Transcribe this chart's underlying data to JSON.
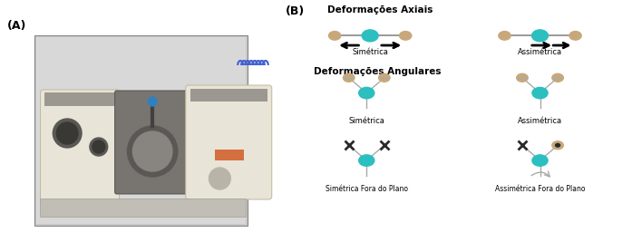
{
  "title_axial": "Deformações Axiais",
  "title_angular": "Deformações Angulares",
  "label_B": "(B)",
  "label_A": "(A)",
  "teal_color": "#2bbfbf",
  "tan_color": "#c8a87a",
  "gray_color": "#aaaaaa",
  "dark_color": "#2a2a2a",
  "bg_color": "#ffffff",
  "label_simetrica1": "Simétrica",
  "label_assimetrica1": "Assimétrica",
  "label_simetrica2": "Simétrica",
  "label_assimetrica2": "Assimétrica",
  "label_simetrica_fora": "Simétrica Fora do Plano",
  "label_assimetrica_fora": "Assimétrica Fora do Plano",
  "photo_bg": "#c8c8c8",
  "photo_main": "#e0ddd5",
  "photo_dark": "#4a4a4a",
  "photo_mid": "#8a8880",
  "photo_accent": "#d47040"
}
